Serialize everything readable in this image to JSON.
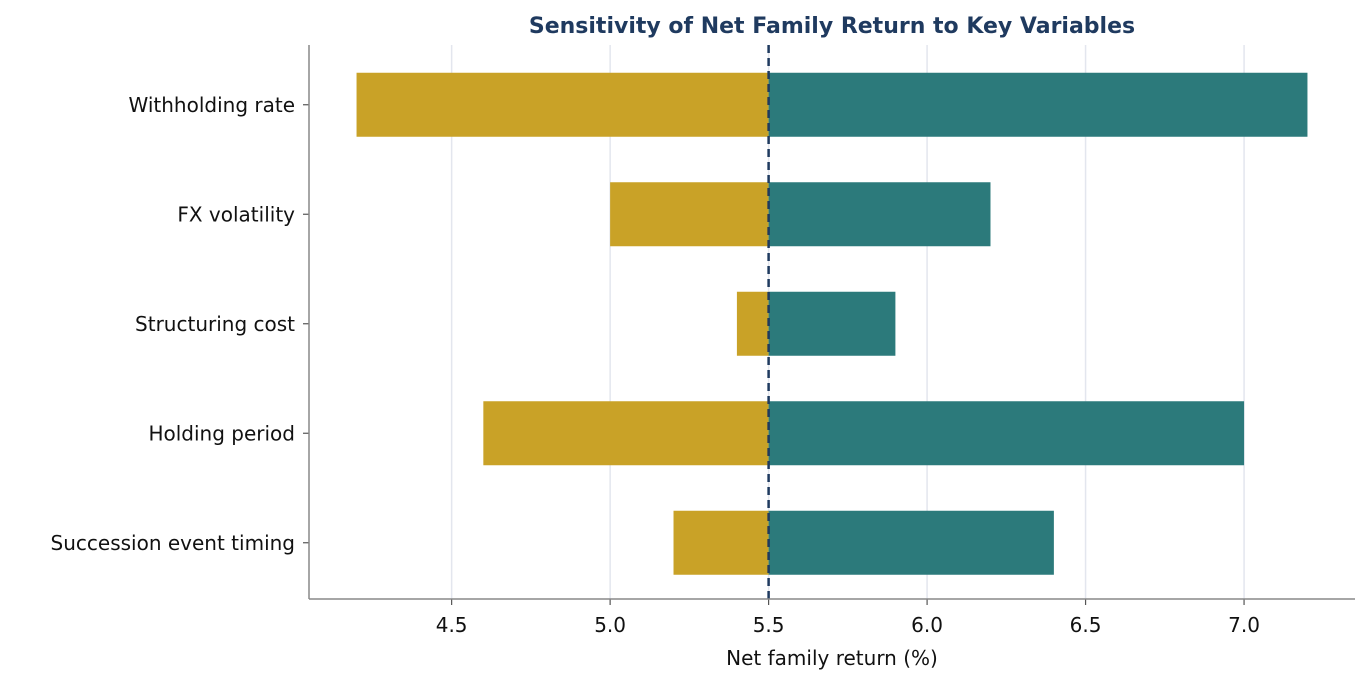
{
  "chart_data": {
    "type": "bar",
    "orientation": "horizontal",
    "chart_subtype": "tornado",
    "title": "Sensitivity of Net Family Return to Key Variables",
    "xlabel": "Net family return (%)",
    "ylabel": "",
    "baseline": 5.5,
    "xlim": [
      4.05,
      7.35
    ],
    "xticks": [
      "4.5",
      "5.0",
      "5.5",
      "6.0",
      "6.5",
      "7.0"
    ],
    "grid": "vertical",
    "categories": [
      "Withholding rate",
      "FX volatility",
      "Structuring cost",
      "Holding period",
      "Succession event timing"
    ],
    "series": [
      {
        "values": [
          4.2,
          5.0,
          5.4,
          4.6,
          5.2
        ],
        "color": "#c9a227"
      },
      {
        "values": [
          7.2,
          6.2,
          5.9,
          7.0,
          6.4
        ],
        "color": "#2c7a7b"
      }
    ],
    "baseline_color": "#1f3a5f",
    "grid_color": "#e3e6ee"
  }
}
